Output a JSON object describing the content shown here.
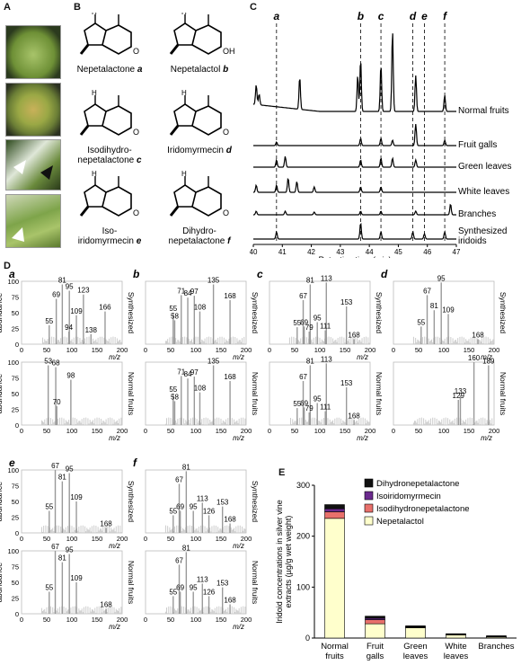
{
  "panels": {
    "A": "A",
    "B": "B",
    "C": "C",
    "D": "D",
    "E": "E"
  },
  "structures": [
    {
      "name": "Nepetalactone",
      "letter": "a"
    },
    {
      "name": "Nepetalactol",
      "letter": "b"
    },
    {
      "name": "Isodihydro-\nnepetalactone",
      "letter": "c"
    },
    {
      "name": "Iridomyrmecin",
      "letter": "d"
    },
    {
      "name": "Iso-\niridomyrmecin",
      "letter": "e"
    },
    {
      "name": "Dihydro-\nnepetalactone",
      "letter": "f"
    }
  ],
  "struct_oh": "OH",
  "struct_o": "O",
  "chrom": {
    "traces": [
      "Normal fruits",
      "Fruit galls",
      "Green leaves",
      "White leaves",
      "Branches",
      "Synthesized\niridoids"
    ],
    "peak_letters": [
      "a",
      "b",
      "c",
      "d",
      "e",
      "f"
    ],
    "peak_times": [
      40.8,
      43.7,
      44.4,
      45.5,
      45.9,
      46.6
    ],
    "xticks": [
      "40",
      "41",
      "42",
      "43",
      "44",
      "45",
      "46",
      "47"
    ],
    "xlabel": "Retention time (min)"
  },
  "ms": {
    "abundance": "abundance",
    "mz": "m/z",
    "yticks": [
      "0",
      "25",
      "50",
      "75",
      "100"
    ],
    "xticks": [
      "0",
      "50",
      "100",
      "150",
      "200"
    ],
    "synth": "Synthesized",
    "normal": "Normal fruits",
    "spectra": [
      {
        "letter": "a",
        "side": "Synthesized",
        "peaks": [
          [
            55,
            30
          ],
          [
            69,
            72
          ],
          [
            81,
            95
          ],
          [
            95,
            85
          ],
          [
            94,
            20
          ],
          [
            109,
            46
          ],
          [
            123,
            79
          ],
          [
            138,
            16
          ],
          [
            166,
            52
          ]
        ],
        "labels": [
          [
            81,
            "81"
          ],
          [
            69,
            "69"
          ],
          [
            95,
            "95"
          ],
          [
            123,
            "123"
          ],
          [
            109,
            "109"
          ],
          [
            55,
            "55"
          ],
          [
            94,
            "94"
          ],
          [
            138,
            "138"
          ],
          [
            166,
            "166"
          ]
        ]
      },
      {
        "letter": "b",
        "side": "Synthesized",
        "peaks": [
          [
            55,
            50
          ],
          [
            58,
            38
          ],
          [
            71,
            78
          ],
          [
            84,
            74
          ],
          [
            97,
            77
          ],
          [
            108,
            52
          ],
          [
            135,
            95
          ],
          [
            168,
            70
          ]
        ],
        "labels": [
          [
            135,
            "135"
          ],
          [
            71,
            "71"
          ],
          [
            84,
            "84"
          ],
          [
            97,
            "97"
          ],
          [
            55,
            "55"
          ],
          [
            58,
            "58"
          ],
          [
            108,
            "108"
          ],
          [
            168,
            "168"
          ]
        ]
      },
      {
        "letter": "c",
        "side": "Synthesized",
        "peaks": [
          [
            55,
            27
          ],
          [
            67,
            70
          ],
          [
            69,
            28
          ],
          [
            79,
            20
          ],
          [
            81,
            95
          ],
          [
            95,
            35
          ],
          [
            111,
            22
          ],
          [
            113,
            98
          ],
          [
            153,
            60
          ],
          [
            168,
            8
          ]
        ],
        "labels": [
          [
            81,
            "81"
          ],
          [
            113,
            "113"
          ],
          [
            67,
            "67"
          ],
          [
            69,
            "69"
          ],
          [
            55,
            "55"
          ],
          [
            79,
            "79"
          ],
          [
            95,
            "95"
          ],
          [
            111,
            "111"
          ],
          [
            153,
            "153"
          ],
          [
            168,
            "168"
          ]
        ]
      },
      {
        "letter": "d",
        "side": "Synthesized",
        "peaks": [
          [
            55,
            28
          ],
          [
            67,
            78
          ],
          [
            81,
            54
          ],
          [
            95,
            98
          ],
          [
            109,
            48
          ],
          [
            168,
            8
          ]
        ],
        "labels": [
          [
            95,
            "95"
          ],
          [
            67,
            "67"
          ],
          [
            81,
            "81"
          ],
          [
            109,
            "109"
          ],
          [
            55,
            "55"
          ],
          [
            168,
            "168"
          ]
        ]
      },
      {
        "letter": "a",
        "side": "Normal fruits",
        "peaks": [
          [
            53,
            95
          ],
          [
            68,
            92
          ],
          [
            70,
            30
          ],
          [
            98,
            72
          ]
        ],
        "labels": [
          [
            53,
            "53"
          ],
          [
            68,
            "68"
          ],
          [
            98,
            "98"
          ],
          [
            70,
            "70"
          ]
        ]
      },
      {
        "letter": "b",
        "side": "Normal fruits",
        "peaks": [
          [
            55,
            50
          ],
          [
            58,
            38
          ],
          [
            71,
            78
          ],
          [
            84,
            74
          ],
          [
            97,
            77
          ],
          [
            108,
            52
          ],
          [
            135,
            95
          ],
          [
            168,
            70
          ]
        ],
        "labels": [
          [
            135,
            "135"
          ],
          [
            71,
            "71"
          ],
          [
            84,
            "84"
          ],
          [
            97,
            "97"
          ],
          [
            55,
            "55"
          ],
          [
            58,
            "58"
          ],
          [
            108,
            "108"
          ],
          [
            168,
            "168"
          ]
        ]
      },
      {
        "letter": "c",
        "side": "Normal fruits",
        "peaks": [
          [
            55,
            27
          ],
          [
            67,
            70
          ],
          [
            69,
            28
          ],
          [
            79,
            20
          ],
          [
            81,
            95
          ],
          [
            95,
            35
          ],
          [
            111,
            22
          ],
          [
            113,
            98
          ],
          [
            153,
            60
          ],
          [
            168,
            8
          ]
        ],
        "labels": [
          [
            81,
            "81"
          ],
          [
            113,
            "113"
          ],
          [
            67,
            "67"
          ],
          [
            69,
            "69"
          ],
          [
            55,
            "55"
          ],
          [
            79,
            "79"
          ],
          [
            95,
            "95"
          ],
          [
            111,
            "111"
          ],
          [
            153,
            "153"
          ],
          [
            168,
            "168"
          ]
        ]
      },
      {
        "letter": "d",
        "side": "Normal fruits",
        "peaks": [
          [
            129,
            40
          ],
          [
            133,
            47
          ],
          [
            160,
            100
          ],
          [
            189,
            95
          ]
        ],
        "labels": [
          [
            160,
            "160"
          ],
          [
            189,
            "189"
          ],
          [
            133,
            "133"
          ],
          [
            129,
            "129"
          ]
        ]
      },
      {
        "letter": "e",
        "side": "Synthesized",
        "peaks": [
          [
            55,
            35
          ],
          [
            67,
            100
          ],
          [
            81,
            82
          ],
          [
            95,
            95
          ],
          [
            109,
            50
          ],
          [
            168,
            8
          ]
        ],
        "labels": [
          [
            67,
            "67"
          ],
          [
            81,
            "81"
          ],
          [
            95,
            "95"
          ],
          [
            109,
            "109"
          ],
          [
            55,
            "55"
          ],
          [
            168,
            "168"
          ]
        ]
      },
      {
        "letter": "f",
        "side": "Synthesized",
        "peaks": [
          [
            55,
            28
          ],
          [
            67,
            78
          ],
          [
            69,
            35
          ],
          [
            81,
            98
          ],
          [
            95,
            35
          ],
          [
            113,
            48
          ],
          [
            126,
            28
          ],
          [
            153,
            42
          ],
          [
            168,
            15
          ]
        ],
        "labels": [
          [
            81,
            "81"
          ],
          [
            67,
            "67"
          ],
          [
            95,
            "95"
          ],
          [
            113,
            "113"
          ],
          [
            55,
            "55"
          ],
          [
            69,
            "69"
          ],
          [
            126,
            "126"
          ],
          [
            153,
            "153"
          ],
          [
            168,
            "168"
          ]
        ]
      },
      {
        "letter": "",
        "side": "Normal fruits",
        "peaks": [
          [
            55,
            35
          ],
          [
            67,
            100
          ],
          [
            81,
            82
          ],
          [
            95,
            95
          ],
          [
            109,
            50
          ],
          [
            168,
            8
          ]
        ],
        "labels": [
          [
            67,
            "67"
          ],
          [
            81,
            "81"
          ],
          [
            95,
            "95"
          ],
          [
            109,
            "109"
          ],
          [
            55,
            "55"
          ],
          [
            168,
            "168"
          ]
        ]
      },
      {
        "letter": "",
        "side": "Normal fruits",
        "peaks": [
          [
            55,
            28
          ],
          [
            67,
            78
          ],
          [
            69,
            35
          ],
          [
            81,
            98
          ],
          [
            95,
            35
          ],
          [
            113,
            48
          ],
          [
            126,
            28
          ],
          [
            153,
            42
          ],
          [
            168,
            15
          ]
        ],
        "labels": [
          [
            81,
            "81"
          ],
          [
            67,
            "67"
          ],
          [
            95,
            "95"
          ],
          [
            113,
            "113"
          ],
          [
            55,
            "55"
          ],
          [
            69,
            "69"
          ],
          [
            126,
            "126"
          ],
          [
            153,
            "153"
          ],
          [
            168,
            "168"
          ]
        ]
      }
    ]
  },
  "chart_data": {
    "type": "bar",
    "categories": [
      "Normal fruits",
      "Fruit galls",
      "Green leaves",
      "White leaves",
      "Branches"
    ],
    "series": [
      {
        "name": "Nepetalactol",
        "color": "#ffffcc",
        "values": [
          235,
          28,
          20,
          6,
          2
        ]
      },
      {
        "name": "Isodihydronepetalactone",
        "color": "#e8706b",
        "values": [
          13,
          8,
          1,
          1,
          1
        ]
      },
      {
        "name": "Isoiridomyrmecin",
        "color": "#6b2a8e",
        "values": [
          6,
          3,
          1,
          0.5,
          0.5
        ]
      },
      {
        "name": "Dihydronepetalactone",
        "color": "#111111",
        "values": [
          8,
          4,
          2,
          1,
          1
        ]
      }
    ],
    "ylabel": "Iridoid concentrations in silver vine extracts (µg/g wet weight)",
    "yticks": [
      "0",
      "100",
      "200",
      "300"
    ],
    "ylim": [
      0,
      300
    ]
  }
}
